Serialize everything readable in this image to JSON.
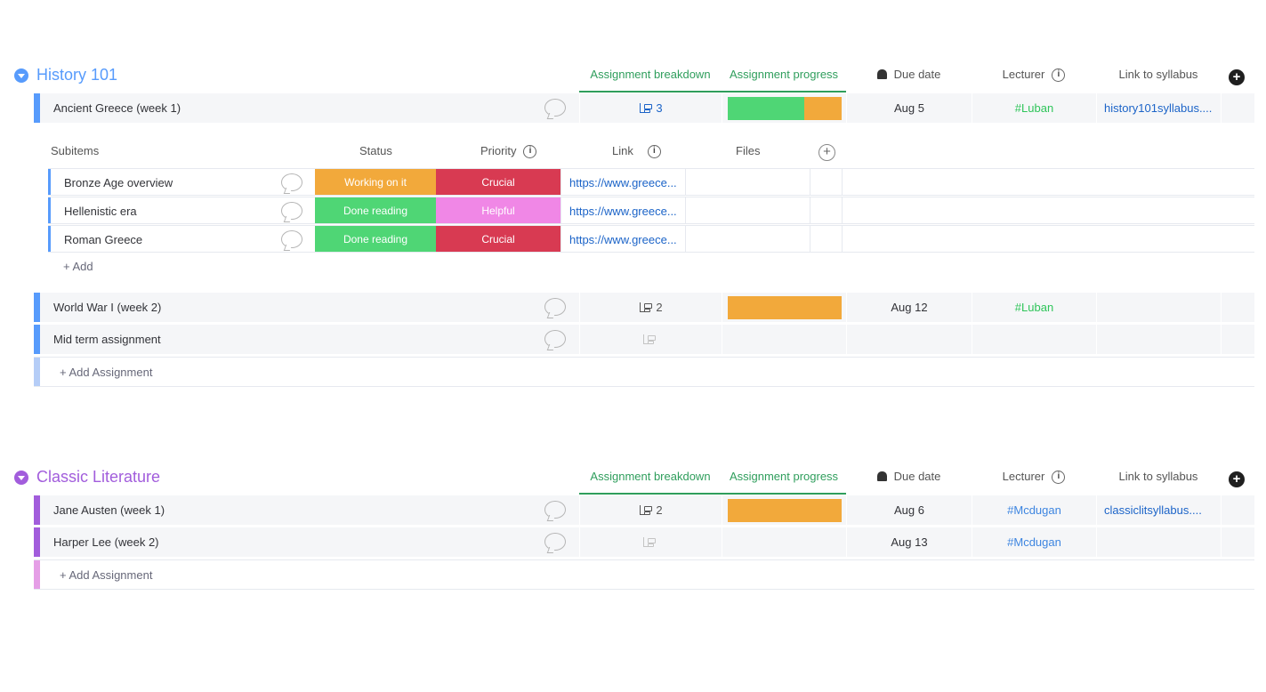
{
  "colors": {
    "history_accent": "#579bfc",
    "literature_accent": "#a25ddc",
    "green": "#4fd675",
    "orange": "#f2a93b",
    "crucial": "#d83a52",
    "helpful": "#f087e6",
    "working": "#f2a93b"
  },
  "columns": {
    "breakdown": "Assignment breakdown",
    "progress": "Assignment progress",
    "due": "Due date",
    "lecturer": "Lecturer",
    "syllabus": "Link to syllabus"
  },
  "history": {
    "title": "History 101",
    "rows": [
      {
        "name": "Ancient Greece (week 1)",
        "breakdown": "3",
        "progress": [
          0.55,
          0.27
        ],
        "due": "Aug 5",
        "lecturer": "#Luban",
        "syllabus": "history101syllabus...."
      },
      {
        "name": "World War I (week 2)",
        "breakdown": "2",
        "progress": [
          0,
          1
        ],
        "due": "Aug 12",
        "lecturer": "#Luban",
        "syllabus": ""
      },
      {
        "name": "Mid term assignment",
        "breakdown": "",
        "progress": null,
        "due": "",
        "lecturer": "",
        "syllabus": ""
      }
    ],
    "subitems": {
      "headers": {
        "name": "Subitems",
        "status": "Status",
        "priority": "Priority",
        "link": "Link",
        "files": "Files"
      },
      "items": [
        {
          "name": "Bronze Age overview",
          "status": "Working on it",
          "priority": "Crucial",
          "link": "https://www.greece..."
        },
        {
          "name": "Hellenistic era",
          "status": "Done reading",
          "priority": "Helpful",
          "link": "https://www.greece..."
        },
        {
          "name": "Roman Greece",
          "status": "Done reading",
          "priority": "Crucial",
          "link": "https://www.greece..."
        }
      ],
      "add_label": "+ Add"
    },
    "add_label": "+ Add Assignment"
  },
  "literature": {
    "title": "Classic Literature",
    "rows": [
      {
        "name": "Jane Austen (week 1)",
        "breakdown": "2",
        "due": "Aug 6",
        "lecturer": "#Mcdugan",
        "syllabus": "classiclitsyllabus...."
      },
      {
        "name": "Harper Lee (week 2)",
        "breakdown": "",
        "due": "Aug 13",
        "lecturer": "#Mcdugan",
        "syllabus": ""
      }
    ],
    "add_label": "+ Add Assignment"
  },
  "icons": [
    "collapse-icon",
    "bell-icon",
    "info-icon",
    "add-column-icon",
    "comment-icon",
    "subitems-icon"
  ]
}
